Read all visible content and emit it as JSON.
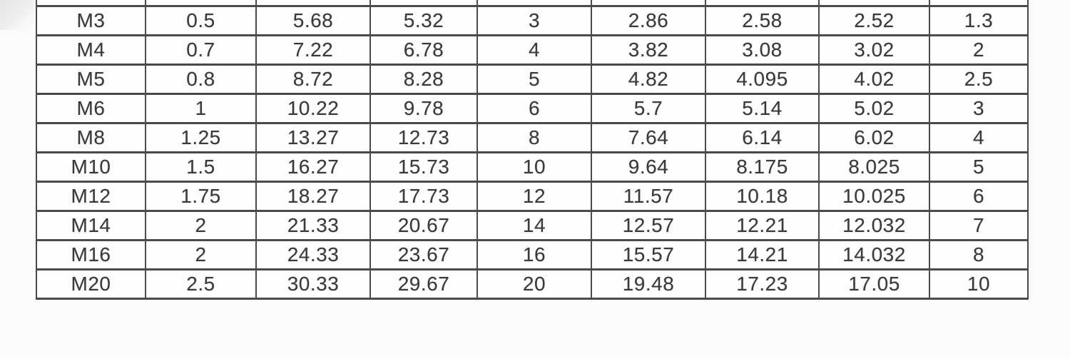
{
  "table": {
    "rows": [
      [
        "M3",
        "0.5",
        "5.68",
        "5.32",
        "3",
        "2.86",
        "2.58",
        "2.52",
        "1.3"
      ],
      [
        "M4",
        "0.7",
        "7.22",
        "6.78",
        "4",
        "3.82",
        "3.08",
        "3.02",
        "2"
      ],
      [
        "M5",
        "0.8",
        "8.72",
        "8.28",
        "5",
        "4.82",
        "4.095",
        "4.02",
        "2.5"
      ],
      [
        "M6",
        "1",
        "10.22",
        "9.78",
        "6",
        "5.7",
        "5.14",
        "5.02",
        "3"
      ],
      [
        "M8",
        "1.25",
        "13.27",
        "12.73",
        "8",
        "7.64",
        "6.14",
        "6.02",
        "4"
      ],
      [
        "M10",
        "1.5",
        "16.27",
        "15.73",
        "10",
        "9.64",
        "8.175",
        "8.025",
        "5"
      ],
      [
        "M12",
        "1.75",
        "18.27",
        "17.73",
        "12",
        "11.57",
        "10.18",
        "10.025",
        "6"
      ],
      [
        "M14",
        "2",
        "21.33",
        "20.67",
        "14",
        "12.57",
        "12.21",
        "12.032",
        "7"
      ],
      [
        "M16",
        "2",
        "24.33",
        "23.67",
        "16",
        "15.57",
        "14.21",
        "14.032",
        "8"
      ],
      [
        "M20",
        "2.5",
        "30.33",
        "29.67",
        "20",
        "19.48",
        "17.23",
        "17.05",
        "10"
      ]
    ]
  },
  "colors": {
    "border": "#4a4a4a",
    "text": "#3a3a3a",
    "cell_bg": "#fefefe",
    "page_bg": "#fbfbfb",
    "corner_smudge": "#e5e5e5"
  }
}
